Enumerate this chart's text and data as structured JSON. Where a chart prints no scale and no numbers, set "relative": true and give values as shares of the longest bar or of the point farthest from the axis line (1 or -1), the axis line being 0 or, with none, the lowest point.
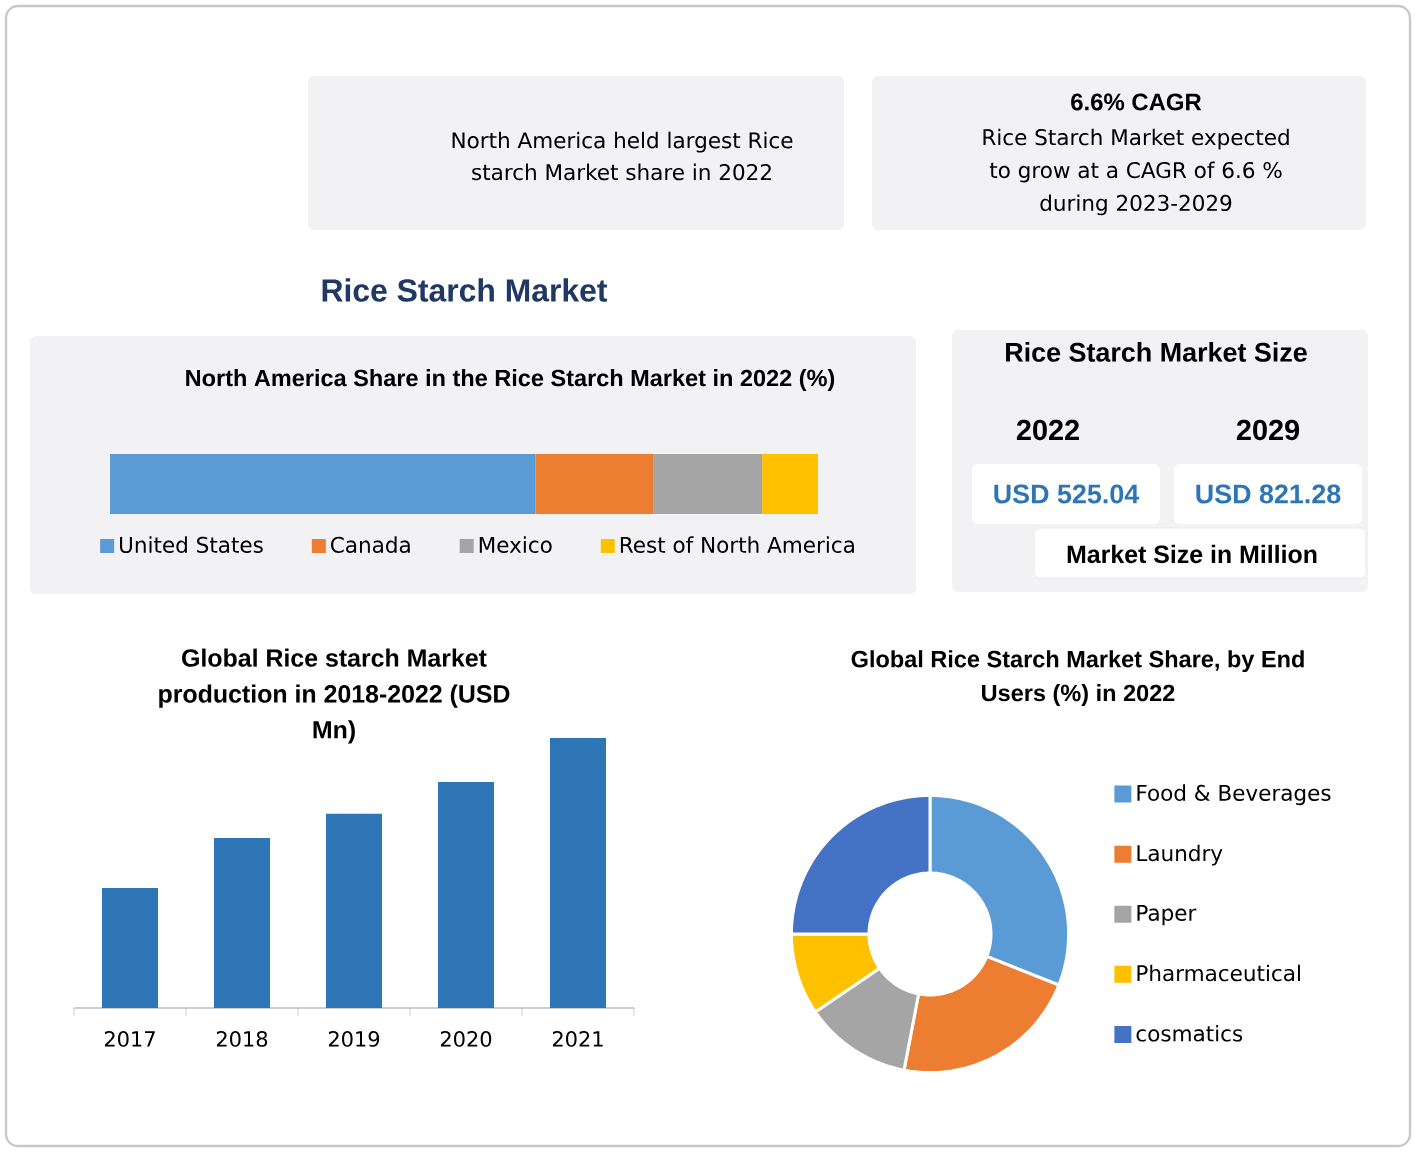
{
  "chart_data": [
    {
      "type": "other",
      "title": "Rice Starch Market",
      "annotations": [
        "North America held largest Rice starch Market share in 2022",
        "6.6% CAGR",
        "Rice Starch Market expected to grow at a CAGR of 6.6 % during 2023-2029"
      ]
    },
    {
      "type": "bar",
      "title": "North America Share in the Rice Starch Market in 2022 (%)",
      "orientation": "horizontal",
      "stacked": true,
      "relative": true,
      "categories": [
        null
      ],
      "series": [
        {
          "name": "United States",
          "color": "#5b9bd5",
          "values": [
            0.601
          ]
        },
        {
          "name": "Canada",
          "color": "#ed7d31",
          "values": [
            0.167
          ]
        },
        {
          "name": "Mexico",
          "color": "#a5a5a5",
          "values": [
            0.153
          ]
        },
        {
          "name": "Rest of North America",
          "color": "#ffc000",
          "values": [
            0.079
          ]
        }
      ],
      "legend": "bottom"
    },
    {
      "type": "other",
      "title": "Rice Starch Market Size",
      "annotations": [
        "2022",
        "2029",
        "USD 525.04",
        "USD 821.28",
        "Market Size in Million"
      ]
    },
    {
      "type": "bar",
      "title": "Global Rice starch Market production in 2018-2022 (USD Mn)",
      "relative": true,
      "categories": [
        "2017",
        "2018",
        "2019",
        "2020",
        "2021"
      ],
      "values": [
        0.444,
        0.63,
        0.719,
        0.837,
        1
      ],
      "color": "#2e75b6"
    },
    {
      "type": "donut",
      "title": "Global Rice Starch Market Share, by End Users (%) in 2022",
      "categories": [
        "Food & Beverages",
        "Laundry",
        "Paper",
        "Pharmaceutical",
        "cosmatics"
      ],
      "values": [
        31,
        22,
        12.5,
        9.5,
        25
      ],
      "colors": [
        "#5b9bd5",
        "#ed7d31",
        "#a5a5a5",
        "#ffc000",
        "#4472c4"
      ],
      "legend": "right"
    }
  ]
}
